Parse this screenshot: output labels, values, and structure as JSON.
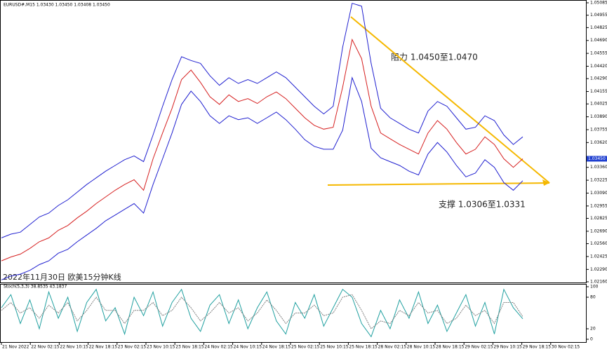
{
  "chart_data": [
    {
      "type": "line",
      "header": "EURUSD#,M15  1.03430 1.03450 1.03408 1.03450",
      "title": "2022年11月30日 欧美15分钟K线",
      "annotations": [
        "阻力 1.0450至1.0470",
        "支撑 1.0306至1.0331"
      ],
      "x_labels": [
        "21 Nov 2022",
        "22 Nov 02:15",
        "22 Nov 10:15",
        "22 Nov 18:15",
        "23 Nov 02:15",
        "23 Nov 10:15",
        "23 Nov 18:15",
        "24 Nov 02:15",
        "24 Nov 10:15",
        "24 Nov 18:15",
        "25 Nov 02:15",
        "25 Nov 10:15",
        "25 Nov 18:15",
        "28 Nov 02:15",
        "28 Nov 10:15",
        "28 Nov 18:15",
        "29 Nov 02:15",
        "29 Nov 10:15",
        "29 Nov 18:15",
        "30 Nov 02:15"
      ],
      "ylim": [
        1.0216,
        1.05085
      ],
      "yticks": [
        1.05085,
        1.04955,
        1.04825,
        {
          "value": 1.0469,
          "label": "1.04690"
        },
        1.04555,
        {
          "value": 1.0442,
          "label": "1.04420"
        },
        {
          "value": 1.0429,
          "label": "1.04290"
        },
        1.04155,
        1.04025,
        {
          "value": 1.0389,
          "label": "1.03890"
        },
        1.03755,
        {
          "value": 1.0362,
          "label": "1.03620"
        },
        {
          "value": 1.0336,
          "label": "1.03360"
        },
        1.03225,
        {
          "value": 1.0309,
          "label": "1.03090"
        },
        1.02955,
        1.02825,
        {
          "value": 1.0269,
          "label": "1.02690"
        },
        {
          "value": 1.0256,
          "label": "1.02560"
        },
        1.02425,
        {
          "value": 1.0229,
          "label": "1.02290"
        },
        {
          "value": 1.0216,
          "label": "1.02160"
        }
      ],
      "last_price": {
        "value": 1.0345,
        "label": "1.03450"
      },
      "series": [
        {
          "name": "Close",
          "color": "#d62020",
          "values": [
            1.0238,
            1.0242,
            1.0245,
            1.0251,
            1.0258,
            1.0262,
            1.027,
            1.0275,
            1.0283,
            1.029,
            1.0298,
            1.0305,
            1.0312,
            1.0318,
            1.0323,
            1.0312,
            1.0345,
            1.0372,
            1.0398,
            1.0428,
            1.0438,
            1.0425,
            1.041,
            1.0402,
            1.0412,
            1.0405,
            1.0408,
            1.0403,
            1.041,
            1.0415,
            1.0408,
            1.0398,
            1.0388,
            1.038,
            1.0376,
            1.0378,
            1.042,
            1.047,
            1.045,
            1.04,
            1.0372,
            1.0366,
            1.036,
            1.0355,
            1.035,
            1.0372,
            1.0385,
            1.0376,
            1.0362,
            1.035,
            1.0355,
            1.0368,
            1.036,
            1.0345,
            1.0336,
            1.0345
          ]
        },
        {
          "name": "Upper band",
          "color": "#2020d0",
          "values": [
            1.0262,
            1.0266,
            1.0268,
            1.0276,
            1.0284,
            1.0288,
            1.0296,
            1.0302,
            1.031,
            1.0318,
            1.0325,
            1.0332,
            1.0338,
            1.0344,
            1.0348,
            1.0342,
            1.037,
            1.04,
            1.0428,
            1.0452,
            1.0448,
            1.0445,
            1.0432,
            1.0422,
            1.043,
            1.0424,
            1.0428,
            1.0424,
            1.043,
            1.0436,
            1.043,
            1.042,
            1.041,
            1.04,
            1.0392,
            1.04,
            1.0462,
            1.0508,
            1.0505,
            1.0445,
            1.0398,
            1.0388,
            1.0382,
            1.0376,
            1.0372,
            1.0395,
            1.0405,
            1.04,
            1.0388,
            1.0376,
            1.0378,
            1.039,
            1.0385,
            1.037,
            1.036,
            1.0368
          ]
        },
        {
          "name": "Lower band",
          "color": "#2020d0",
          "values": [
            1.0218,
            1.0222,
            1.0224,
            1.0228,
            1.0234,
            1.0238,
            1.0246,
            1.025,
            1.0258,
            1.0265,
            1.0272,
            1.028,
            1.0286,
            1.0292,
            1.0298,
            1.0288,
            1.0318,
            1.0345,
            1.0372,
            1.0402,
            1.0416,
            1.0405,
            1.039,
            1.0382,
            1.039,
            1.0386,
            1.0388,
            1.0382,
            1.0388,
            1.0394,
            1.0386,
            1.0376,
            1.0365,
            1.0358,
            1.0355,
            1.0355,
            1.0375,
            1.043,
            1.0405,
            1.0356,
            1.0346,
            1.0342,
            1.0338,
            1.0332,
            1.0328,
            1.035,
            1.0362,
            1.0352,
            1.0338,
            1.0326,
            1.033,
            1.0344,
            1.0336,
            1.032,
            1.0312,
            1.0322
          ]
        }
      ]
    },
    {
      "type": "line",
      "title": "Stoch(5,3,3) 38.8535 43.1837",
      "ylim": [
        0,
        100
      ],
      "yticks": [
        100,
        80,
        20,
        0
      ],
      "series": [
        {
          "name": "Main",
          "color": "#20a0a0",
          "values": [
            60,
            85,
            30,
            75,
            20,
            90,
            40,
            80,
            15,
            70,
            95,
            35,
            60,
            10,
            80,
            45,
            90,
            25,
            70,
            95,
            40,
            15,
            65,
            85,
            30,
            75,
            20,
            60,
            90,
            35,
            10,
            70,
            40,
            85,
            25,
            60,
            95,
            80,
            30,
            5,
            55,
            20,
            75,
            40,
            90,
            30,
            65,
            15,
            50,
            85,
            25,
            70,
            10,
            95,
            60,
            39
          ]
        },
        {
          "name": "Signal",
          "color": "#808080",
          "values": [
            55,
            70,
            50,
            60,
            40,
            65,
            50,
            70,
            35,
            55,
            80,
            55,
            55,
            30,
            55,
            55,
            70,
            45,
            55,
            80,
            60,
            35,
            50,
            70,
            50,
            60,
            35,
            50,
            75,
            55,
            30,
            50,
            50,
            65,
            45,
            50,
            80,
            85,
            55,
            20,
            35,
            30,
            55,
            45,
            70,
            50,
            55,
            30,
            40,
            65,
            45,
            55,
            30,
            70,
            70,
            43
          ]
        }
      ]
    }
  ]
}
